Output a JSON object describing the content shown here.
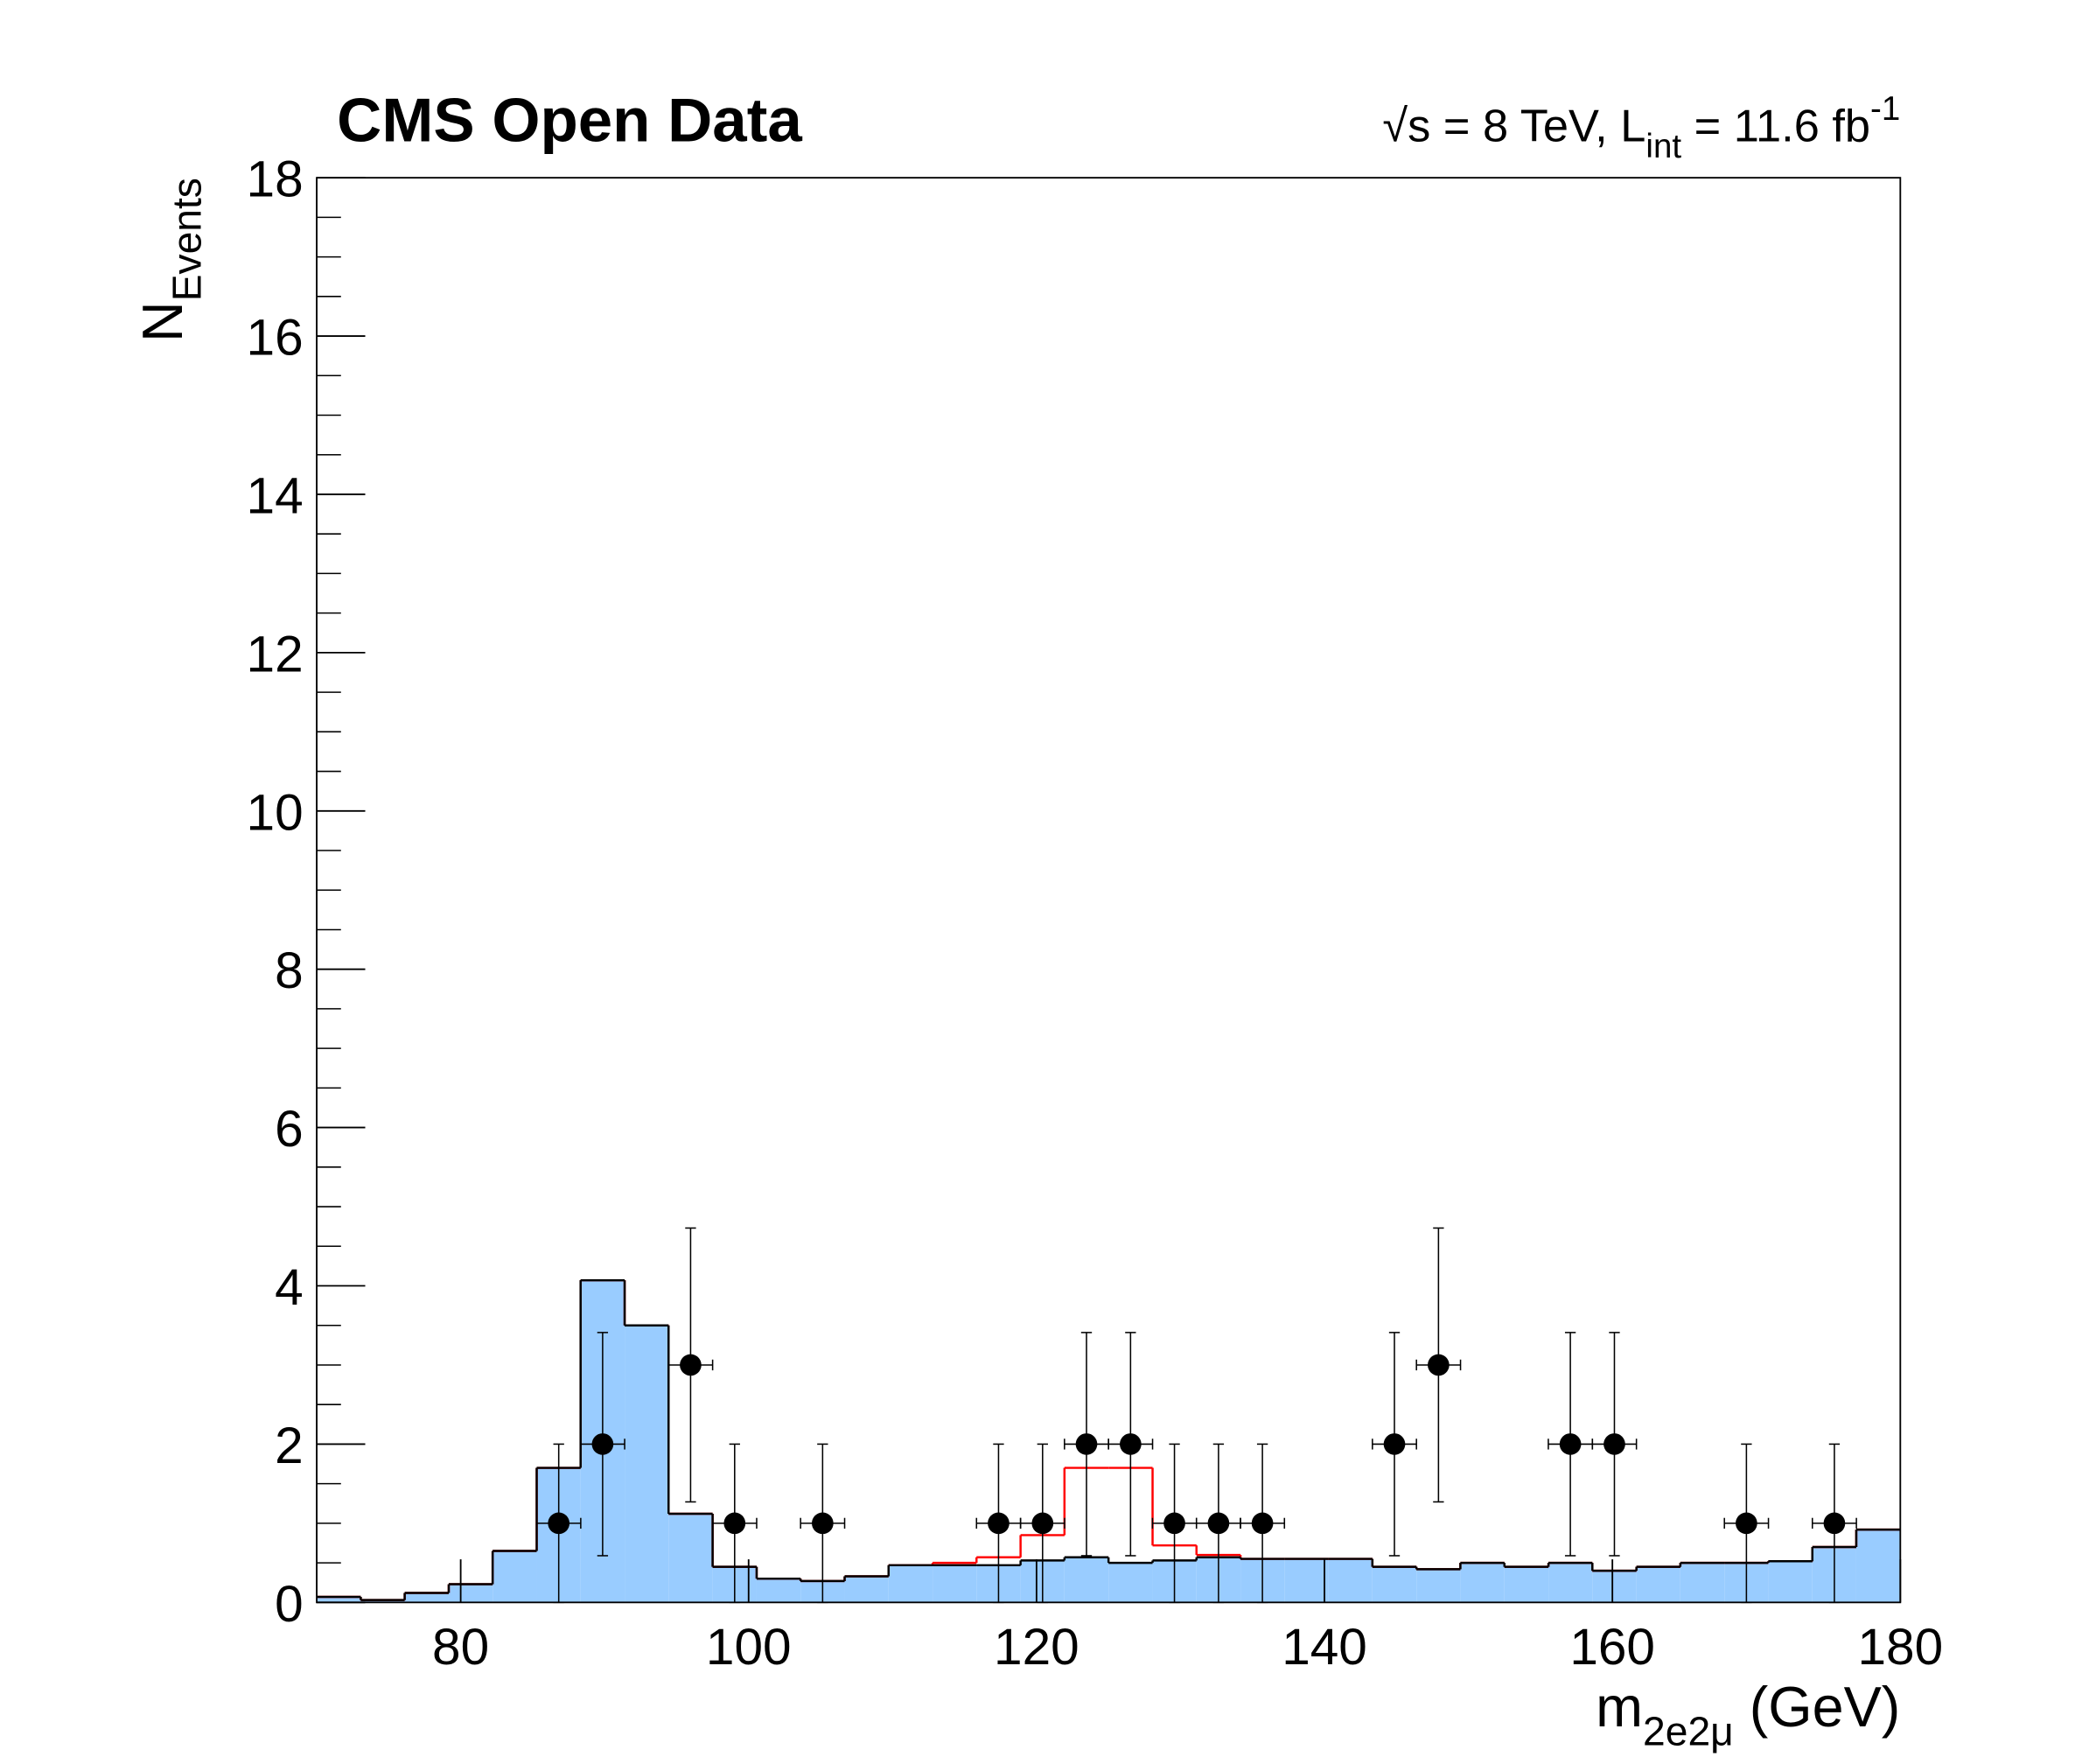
{
  "chart_data": {
    "type": "histogram",
    "title": "CMS Open Data",
    "energy_label": {
      "main": "√s = 8 TeV, L",
      "sub": "int",
      "rest": " = 11.6 fb",
      "sup": "-1"
    },
    "y_label": {
      "main": "N",
      "sub": "Events"
    },
    "x_label": {
      "main": "m",
      "sub": "2e2μ",
      "rest": " (GeV)"
    },
    "xlim": [
      70,
      180
    ],
    "ylim": [
      0,
      18
    ],
    "xticks": [
      80,
      100,
      120,
      140,
      160,
      180
    ],
    "yticks": [
      0,
      2,
      4,
      6,
      8,
      10,
      12,
      14,
      16,
      18
    ],
    "bins": [
      70,
      73.06,
      76.11,
      79.17,
      82.22,
      85.28,
      88.33,
      91.39,
      94.44,
      97.5,
      100.56,
      103.61,
      106.67,
      109.72,
      112.78,
      115.83,
      118.89,
      121.94,
      125,
      128.06,
      131.11,
      134.17,
      137.22,
      140.28,
      143.33,
      146.39,
      149.44,
      152.5,
      155.56,
      158.61,
      161.67,
      164.72,
      167.78,
      170.83,
      173.89,
      176.94,
      180
    ],
    "series": [
      {
        "color": "#99ccff",
        "line_color": "#000000",
        "values": [
          0.07,
          0.03,
          0.12,
          0.23,
          0.65,
          1.7,
          4.07,
          3.5,
          1.12,
          0.45,
          0.3,
          0.27,
          0.33,
          0.47,
          0.47,
          0.47,
          0.53,
          0.57,
          0.5,
          0.53,
          0.57,
          0.55,
          0.55,
          0.55,
          0.45,
          0.42,
          0.5,
          0.45,
          0.5,
          0.4,
          0.45,
          0.5,
          0.5,
          0.52,
          0.7,
          0.92
        ]
      },
      {
        "color": "none",
        "line_color": "#ff0000",
        "values": [
          0,
          0,
          0,
          0,
          0,
          0,
          0,
          0,
          0,
          0,
          0,
          0,
          0,
          0,
          0.03,
          0.1,
          0.32,
          1.13,
          1.2,
          0.19,
          0.03,
          0,
          0,
          0,
          0,
          0,
          0,
          0,
          0,
          0,
          0,
          0,
          0,
          0,
          0,
          0
        ]
      }
    ],
    "data_points": {
      "color": "#000000",
      "xerr": 1.53,
      "x": [
        86.81,
        89.86,
        95.97,
        99.03,
        105.14,
        117.36,
        120.42,
        123.47,
        126.53,
        129.58,
        132.64,
        135.69,
        144.86,
        147.92,
        157.08,
        160.14,
        169.31,
        175.42
      ],
      "values": [
        1,
        2,
        3,
        1,
        1,
        1,
        1,
        2,
        2,
        1,
        1,
        1,
        2,
        3,
        2,
        2,
        1,
        1
      ],
      "errors": [
        1,
        1.41,
        1.73,
        1,
        1,
        1,
        1,
        1.41,
        1.41,
        1,
        1,
        1,
        1.41,
        1.73,
        1.41,
        1.41,
        1,
        1
      ]
    }
  }
}
